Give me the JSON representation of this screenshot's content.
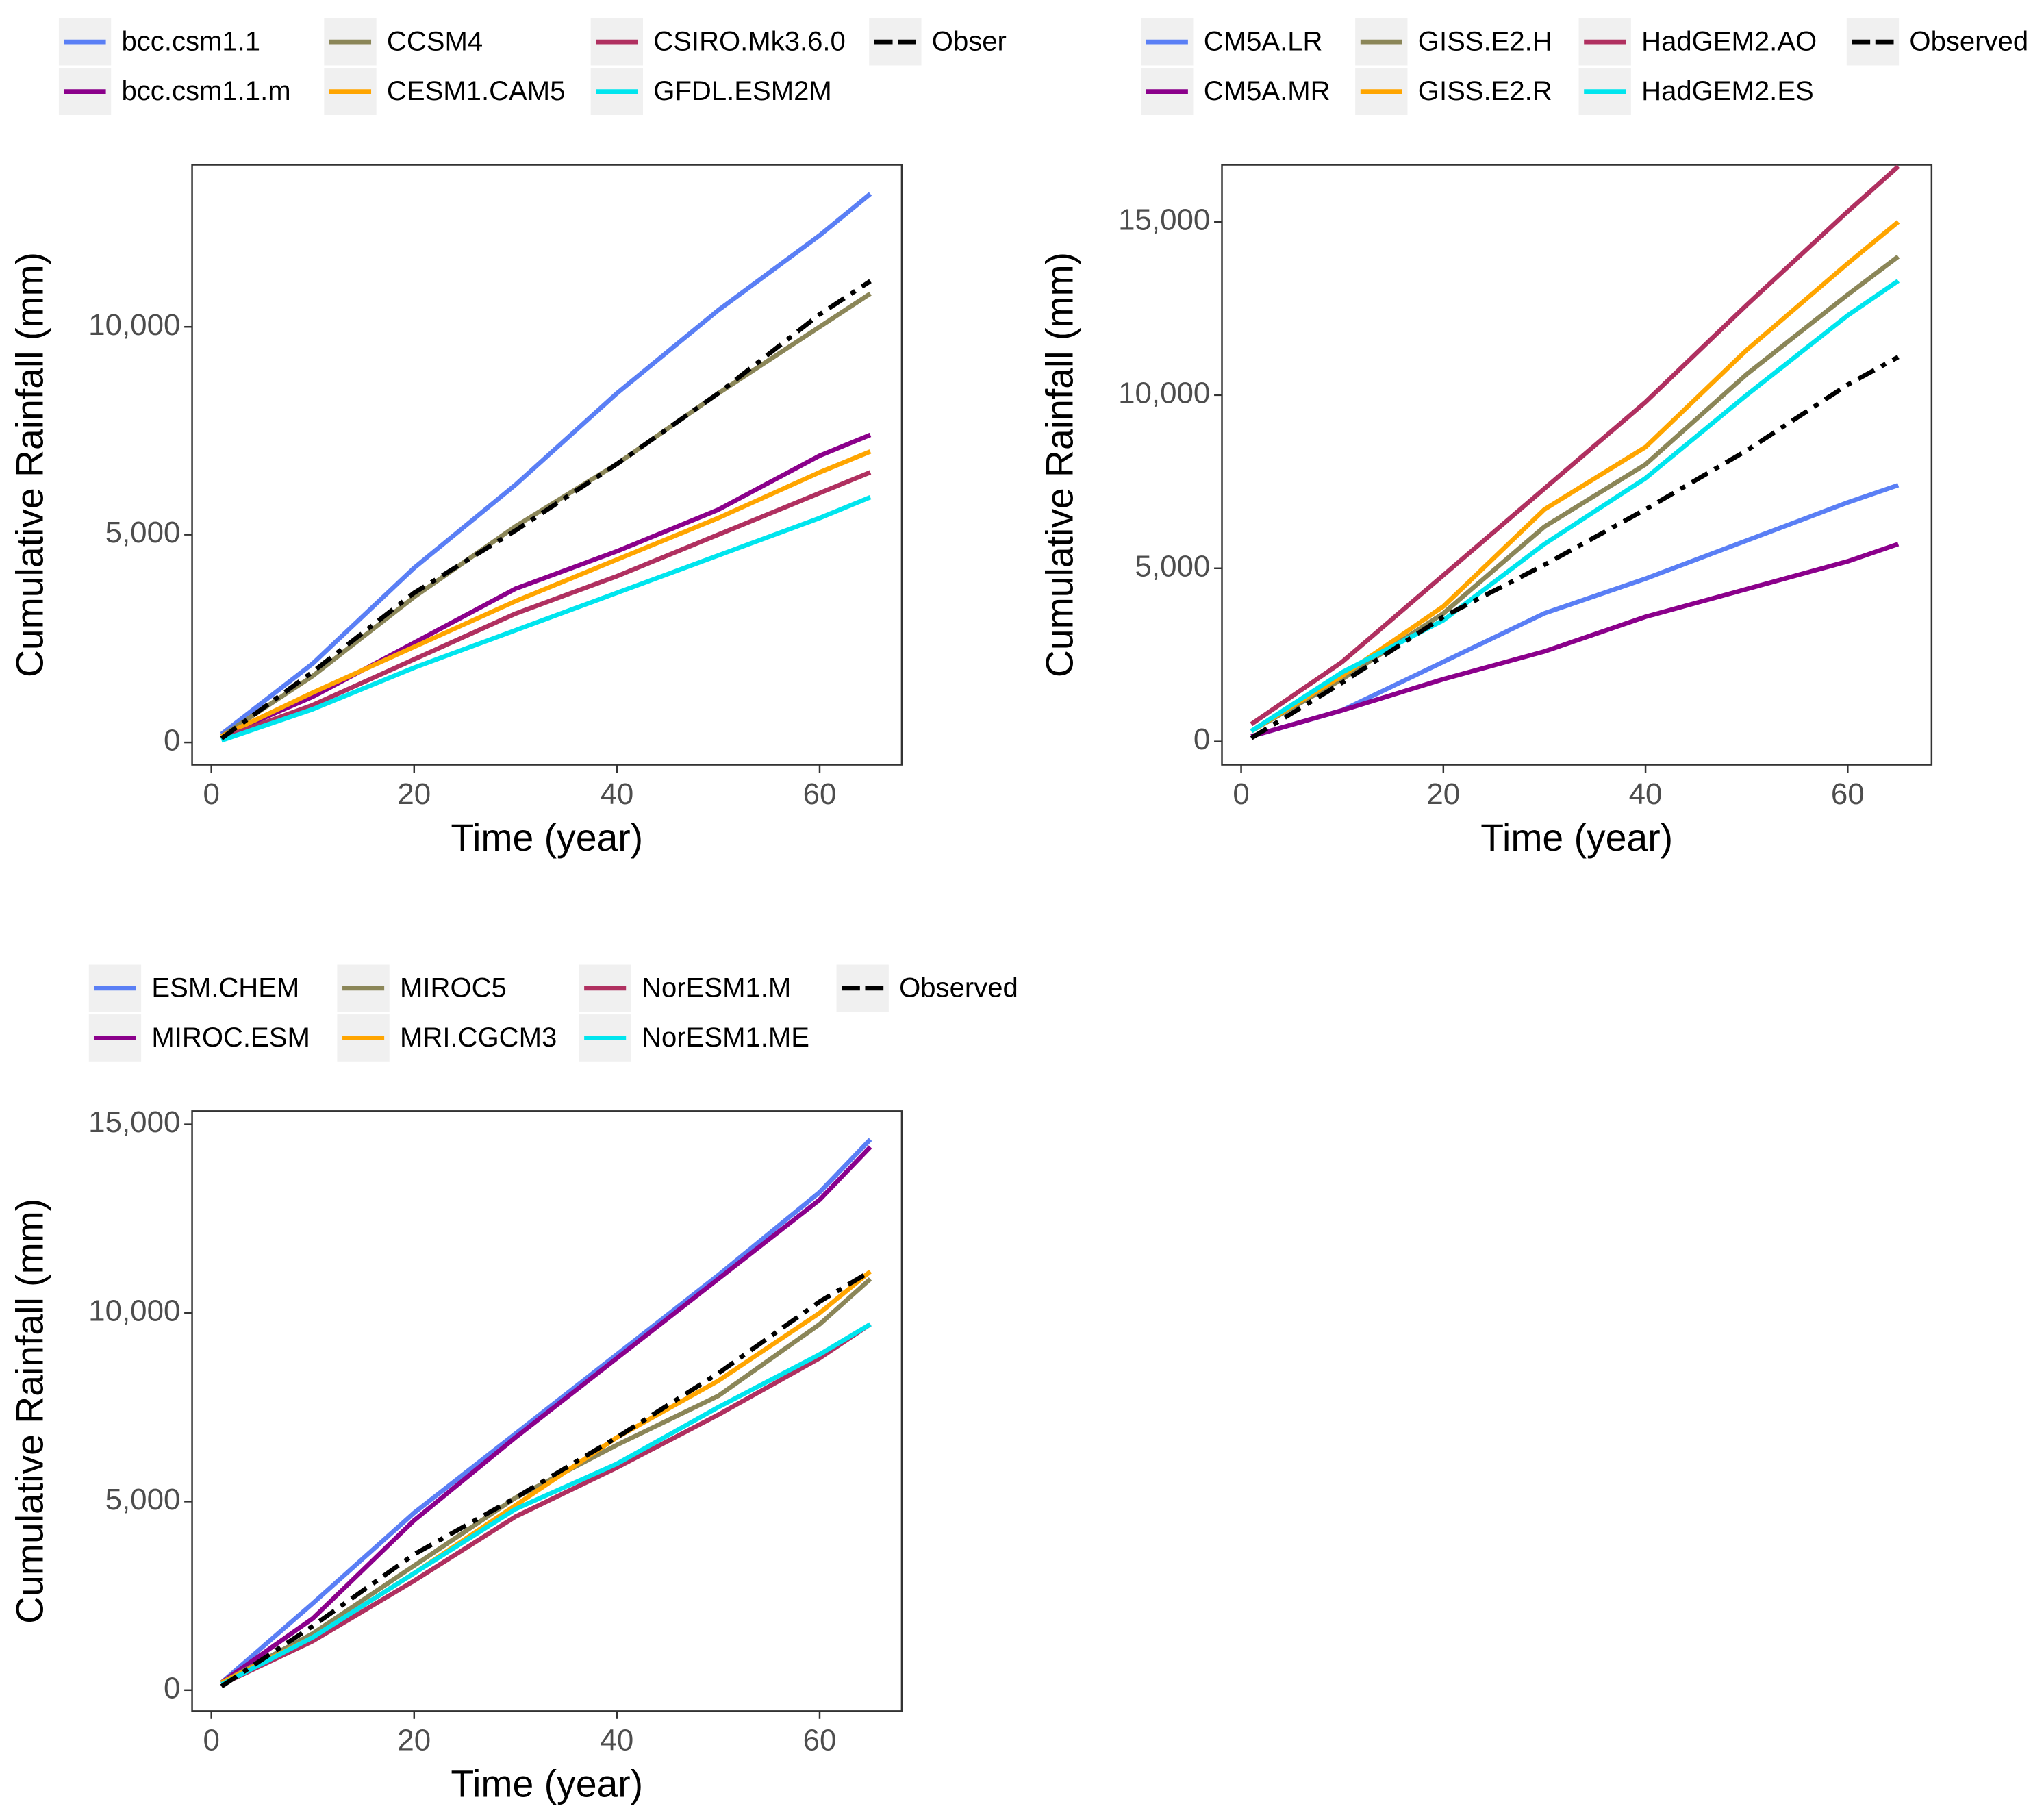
{
  "chart_data": [
    {
      "type": "line",
      "x_label": "Time (year)",
      "y_label": "Cumulative Rainfall (mm)",
      "x": [
        1,
        10,
        20,
        30,
        40,
        50,
        60,
        65
      ],
      "xlim": [
        -1.9,
        68.1
      ],
      "xticks": [
        0,
        20,
        40,
        60
      ],
      "ylim": [
        -535,
        13900
      ],
      "yticks": [
        0,
        {
          "value": 5000,
          "label": "5,000"
        },
        {
          "value": 10000,
          "label": "10,000"
        }
      ],
      "series": [
        {
          "name": "bcc.csm1.1",
          "color": "#5a7ff5",
          "values": [
            200,
            1900,
            4200,
            6200,
            8400,
            10400,
            12200,
            13200
          ]
        },
        {
          "name": "bcc.csm1.1.m",
          "color": "#8b008b",
          "values": [
            150,
            1100,
            2400,
            3700,
            4600,
            5600,
            6900,
            7400
          ]
        },
        {
          "name": "CCSM4",
          "color": "#8b8658",
          "values": [
            150,
            1600,
            3500,
            5200,
            6700,
            8400,
            10000,
            10800
          ]
        },
        {
          "name": "CESM1.CAM5",
          "color": "#ffa500",
          "values": [
            150,
            1200,
            2300,
            3400,
            4400,
            5400,
            6500,
            7000
          ]
        },
        {
          "name": "CSIRO.Mk3.6.0",
          "color": "#b03060",
          "values": [
            100,
            900,
            2000,
            3100,
            4000,
            5000,
            6000,
            6500
          ]
        },
        {
          "name": "GFDL.ESM2M",
          "color": "#00e5ee",
          "values": [
            50,
            800,
            1800,
            2700,
            3600,
            4500,
            5400,
            5900
          ]
        },
        {
          "name": "Obser",
          "color": "#000000",
          "dashed": true,
          "values": [
            100,
            1700,
            3600,
            5100,
            6700,
            8400,
            10300,
            11100
          ]
        }
      ]
    },
    {
      "type": "line",
      "x_label": "Time (year)",
      "y_label": "Cumulative Rainfall (mm)",
      "x": [
        1,
        10,
        20,
        30,
        40,
        50,
        60,
        65
      ],
      "xlim": [
        -1.9,
        68.3
      ],
      "xticks": [
        0,
        20,
        40,
        60
      ],
      "ylim": [
        -670,
        16650
      ],
      "yticks": [
        0,
        {
          "value": 5000,
          "label": "5,000"
        },
        {
          "value": 10000,
          "label": "10,000"
        },
        {
          "value": 15000,
          "label": "15,000"
        }
      ],
      "series": [
        {
          "name": "CM5A.LR",
          "color": "#5a7ff5",
          "values": [
            150,
            900,
            2300,
            3700,
            4700,
            5800,
            6900,
            7400
          ]
        },
        {
          "name": "CM5A.MR",
          "color": "#8b008b",
          "values": [
            150,
            900,
            1800,
            2600,
            3600,
            4400,
            5200,
            5700
          ]
        },
        {
          "name": "GISS.E2.H",
          "color": "#8b8658",
          "values": [
            300,
            1800,
            3700,
            6200,
            8000,
            10600,
            12900,
            14000
          ]
        },
        {
          "name": "GISS.E2.R",
          "color": "#ffa500",
          "values": [
            300,
            1900,
            3900,
            6700,
            8500,
            11300,
            13800,
            15000
          ]
        },
        {
          "name": "HadGEM2.AO",
          "color": "#b03060",
          "values": [
            500,
            2300,
            4800,
            7300,
            9800,
            12600,
            15300,
            16600
          ]
        },
        {
          "name": "HadGEM2.ES",
          "color": "#00e5ee",
          "values": [
            300,
            2000,
            3500,
            5700,
            7600,
            10000,
            12300,
            13300
          ]
        },
        {
          "name": "Observed",
          "color": "#000000",
          "dashed": true,
          "values": [
            100,
            1700,
            3600,
            5100,
            6700,
            8400,
            10300,
            11100
          ]
        }
      ]
    },
    {
      "type": "line",
      "x_label": "Time (year)",
      "y_label": "Cumulative Rainfall (mm)",
      "x": [
        1,
        10,
        20,
        30,
        40,
        50,
        60,
        65
      ],
      "xlim": [
        -1.9,
        68.1
      ],
      "xticks": [
        0,
        20,
        40,
        60
      ],
      "ylim": [
        -555,
        15350
      ],
      "yticks": [
        0,
        {
          "value": 5000,
          "label": "5,000"
        },
        {
          "value": 10000,
          "label": "10,000"
        },
        {
          "value": 15000,
          "label": "15,000"
        }
      ],
      "series": [
        {
          "name": "ESM.CHEM",
          "color": "#5a7ff5",
          "values": [
            200,
            2300,
            4700,
            6800,
            8900,
            11000,
            13200,
            14600
          ]
        },
        {
          "name": "MIROC.ESM",
          "color": "#8b008b",
          "values": [
            200,
            1900,
            4500,
            6700,
            8800,
            10900,
            13000,
            14400
          ]
        },
        {
          "name": "MIROC5",
          "color": "#8b8658",
          "values": [
            200,
            1500,
            3300,
            5100,
            6500,
            7800,
            9700,
            10900
          ]
        },
        {
          "name": "MRI.CGCM3",
          "color": "#ffa500",
          "values": [
            200,
            1400,
            3100,
            4900,
            6700,
            8200,
            10000,
            11100
          ]
        },
        {
          "name": "NorESM1.M",
          "color": "#b03060",
          "values": [
            150,
            1300,
            2900,
            4600,
            5900,
            7300,
            8800,
            9700
          ]
        },
        {
          "name": "NorESM1.ME",
          "color": "#00e5ee",
          "values": [
            150,
            1400,
            3100,
            4800,
            6000,
            7500,
            8900,
            9700
          ]
        },
        {
          "name": "Observed",
          "color": "#000000",
          "dashed": true,
          "values": [
            100,
            1700,
            3600,
            5100,
            6700,
            8400,
            10300,
            11100
          ]
        }
      ]
    }
  ]
}
